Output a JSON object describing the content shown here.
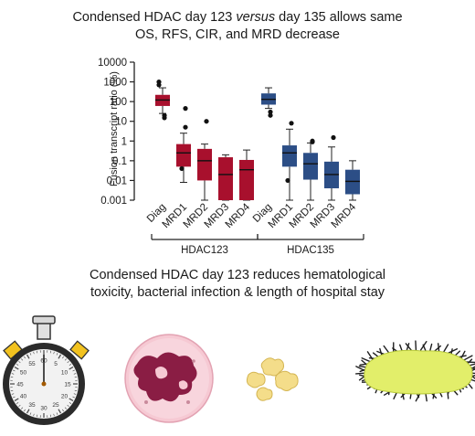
{
  "top_title": {
    "line1_a": "Condensed HDAC day 123 ",
    "line1_em": "versus",
    "line1_b": " day 135 allows same",
    "line2": "OS, RFS, CIR, and MRD decrease"
  },
  "bottom_title": {
    "line1": "Condensed HDAC day 123 reduces hematological",
    "line2": "toxicity, bacterial infection & length of hospital stay"
  },
  "chart_data": {
    "type": "boxplot",
    "title": "",
    "ylabel": "Fusion transcript ratio (%)",
    "yscale": "log",
    "ylim": [
      0.001,
      10000
    ],
    "yticks": [
      "10000",
      "1000",
      "100",
      "10",
      "1",
      "0.1",
      "0.01",
      "0.001"
    ],
    "categories": [
      "Diag",
      "MRD1",
      "MRD2",
      "MRD3",
      "MRD4"
    ],
    "colors": {
      "HDAC123": "#a8102d",
      "HDAC135": "#2c4e86"
    },
    "groups": [
      {
        "name": "HDAC123",
        "boxes": [
          {
            "q1": 60,
            "median": 120,
            "q3": 220,
            "whisker_low": 25,
            "whisker_high": 500,
            "outliers": [
              1000,
              700,
              20,
              15
            ]
          },
          {
            "q1": 0.05,
            "median": 0.25,
            "q3": 0.7,
            "whisker_low": 0.008,
            "whisker_high": 2.5,
            "outliers": [
              45,
              5,
              0.04
            ]
          },
          {
            "q1": 0.01,
            "median": 0.1,
            "q3": 0.4,
            "whisker_low": 0.001,
            "whisker_high": 0.7,
            "outliers": [
              10
            ]
          },
          {
            "q1": 0.001,
            "median": 0.02,
            "q3": 0.15,
            "whisker_low": 0.001,
            "whisker_high": 0.2,
            "outliers": []
          },
          {
            "q1": 0.001,
            "median": 0.035,
            "q3": 0.11,
            "whisker_low": 0.001,
            "whisker_high": 0.35,
            "outliers": []
          }
        ]
      },
      {
        "name": "HDAC135",
        "boxes": [
          {
            "q1": 70,
            "median": 130,
            "q3": 260,
            "whisker_low": 45,
            "whisker_high": 500,
            "outliers": [
              20,
              30
            ]
          },
          {
            "q1": 0.05,
            "median": 0.25,
            "q3": 0.6,
            "whisker_low": 0.001,
            "whisker_high": 4,
            "outliers": [
              8,
              0.01
            ]
          },
          {
            "q1": 0.011,
            "median": 0.07,
            "q3": 0.25,
            "whisker_low": 0.001,
            "whisker_high": 0.8,
            "outliers": [
              1,
              0.9
            ]
          },
          {
            "q1": 0.004,
            "median": 0.02,
            "q3": 0.09,
            "whisker_low": 0.001,
            "whisker_high": 0.5,
            "outliers": [
              1.5
            ]
          },
          {
            "q1": 0.002,
            "median": 0.009,
            "q3": 0.035,
            "whisker_low": 0.001,
            "whisker_high": 0.1,
            "outliers": []
          }
        ]
      }
    ]
  },
  "stopwatch_dial": [
    "60",
    "5",
    "10",
    "15",
    "20",
    "25",
    "30",
    "35",
    "40",
    "45",
    "50",
    "55"
  ],
  "icons": [
    "stopwatch-icon",
    "neutrophil-cell-icon",
    "bacteria-cluster-icon",
    "rod-bacterium-icon"
  ]
}
